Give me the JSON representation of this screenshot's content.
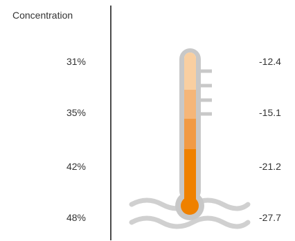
{
  "header": {
    "label": "Concentration"
  },
  "rows": [
    {
      "concentration": "31%",
      "value": "-12.4"
    },
    {
      "concentration": "35%",
      "value": "-15.1"
    },
    {
      "concentration": "42%",
      "value": "-21.2"
    },
    {
      "concentration": "48%",
      "value": "-27.7"
    }
  ],
  "colors": {
    "segment_1": "#f9cfa1",
    "segment_2": "#f5b679",
    "segment_3": "#f19a45",
    "segment_4": "#ef8100",
    "bulb": "#ef8100",
    "outline": "#c8c8c8",
    "waves": "#d0d0d0"
  },
  "icons": [
    "thermometer-icon",
    "waves-icon"
  ]
}
